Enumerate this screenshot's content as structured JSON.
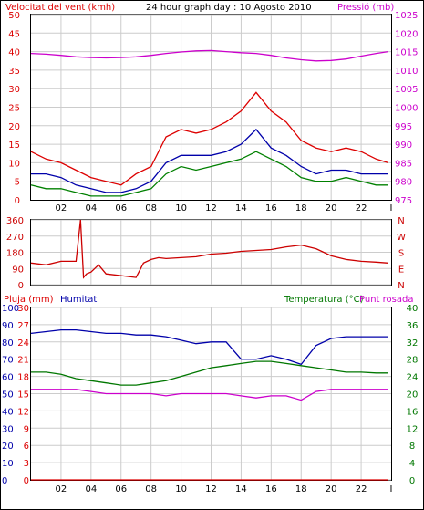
{
  "colors": {
    "wind": "#dd0000",
    "gust_green": "#008000",
    "avg_blue": "#0000aa",
    "pressure": "#cc00cc",
    "direction": "#cc0000",
    "humidity": "#0000aa",
    "temperature": "#007700",
    "dewpoint": "#cc00cc",
    "rain": "#dd0000",
    "grid": "#cccccc"
  },
  "chart_data": [
    {
      "type": "line",
      "title": "24 hour graph day : 10 Agosto 2010",
      "left_axis_label": "Velocitat del vent (kmh)",
      "right_axis_label": "Pressió (mb)",
      "ylim_left": [
        0,
        50
      ],
      "ylim_right": [
        975,
        1025
      ],
      "yticks_left": [
        "0",
        "5",
        "10",
        "15",
        "20",
        "25",
        "30",
        "35",
        "40",
        "45",
        "50"
      ],
      "yticks_right": [
        "975",
        "980",
        "985",
        "990",
        "995",
        "1000",
        "1005",
        "1010",
        "1015",
        "1020",
        "1025"
      ],
      "xticks": [
        "02",
        "04",
        "06",
        "08",
        "10",
        "12",
        "14",
        "16",
        "18",
        "20",
        "22",
        "I"
      ],
      "xlim": [
        0,
        24
      ],
      "grid": true,
      "series": [
        {
          "key": "pressure",
          "axis": "right",
          "x": [
            0,
            1,
            2,
            3,
            4,
            5,
            6,
            7,
            8,
            9,
            10,
            11,
            12,
            13,
            14,
            15,
            16,
            17,
            18,
            19,
            20,
            21,
            22,
            23,
            23.8
          ],
          "values": [
            1014.5,
            1014.3,
            1014.0,
            1013.6,
            1013.4,
            1013.3,
            1013.4,
            1013.6,
            1014.0,
            1014.5,
            1014.9,
            1015.2,
            1015.3,
            1015.0,
            1014.7,
            1014.5,
            1014.0,
            1013.3,
            1012.8,
            1012.5,
            1012.6,
            1013.0,
            1013.8,
            1014.5,
            1015.0
          ]
        },
        {
          "key": "wind",
          "axis": "left",
          "x": [
            0,
            1,
            2,
            3,
            4,
            5,
            6,
            7,
            8,
            9,
            10,
            11,
            12,
            13,
            14,
            15,
            16,
            17,
            18,
            19,
            20,
            21,
            22,
            23,
            23.8
          ],
          "values": [
            13,
            11,
            10,
            8,
            6,
            5,
            4,
            7,
            9,
            17,
            19,
            18,
            19,
            21,
            24,
            29,
            24,
            21,
            16,
            14,
            13,
            14,
            13,
            11,
            10
          ]
        },
        {
          "key": "avg_blue",
          "axis": "left",
          "x": [
            0,
            1,
            2,
            3,
            4,
            5,
            6,
            7,
            8,
            9,
            10,
            11,
            12,
            13,
            14,
            15,
            16,
            17,
            18,
            19,
            20,
            21,
            22,
            23,
            23.8
          ],
          "values": [
            7,
            7,
            6,
            4,
            3,
            2,
            2,
            3,
            5,
            10,
            12,
            12,
            12,
            13,
            15,
            19,
            14,
            12,
            9,
            7,
            8,
            8,
            7,
            7,
            7
          ]
        },
        {
          "key": "gust_green",
          "axis": "left",
          "x": [
            0,
            1,
            2,
            3,
            4,
            5,
            6,
            7,
            8,
            9,
            10,
            11,
            12,
            13,
            14,
            15,
            16,
            17,
            18,
            19,
            20,
            21,
            22,
            23,
            23.8
          ],
          "values": [
            4,
            3,
            3,
            2,
            1,
            1,
            1,
            2,
            3,
            7,
            9,
            8,
            9,
            10,
            11,
            13,
            11,
            9,
            6,
            5,
            5,
            6,
            5,
            4,
            4
          ]
        }
      ]
    },
    {
      "type": "line",
      "ylim": [
        0,
        360
      ],
      "yticks": [
        "0",
        "90",
        "180",
        "270",
        "360"
      ],
      "direction_labels": [
        "N",
        "W",
        "S",
        "E",
        "N"
      ],
      "xlim": [
        0,
        24
      ],
      "grid": true,
      "series": [
        {
          "key": "direction",
          "x": [
            0,
            1,
            2,
            3,
            3.3,
            3.5,
            3.7,
            4,
            4.5,
            5,
            6,
            7,
            7.5,
            8,
            8.5,
            9,
            10,
            11,
            12,
            13,
            14,
            15,
            16,
            17,
            18,
            19,
            20,
            21,
            22,
            23,
            23.8
          ],
          "values": [
            120,
            110,
            130,
            130,
            360,
            40,
            60,
            70,
            110,
            60,
            50,
            40,
            120,
            140,
            150,
            145,
            150,
            155,
            170,
            175,
            185,
            190,
            195,
            210,
            220,
            200,
            160,
            140,
            130,
            125,
            120
          ]
        }
      ]
    },
    {
      "type": "line",
      "left_axis_label": "Pluja (mm)",
      "left_axis_label2": "Humitat",
      "right_axis_label": "Temperatura (°C)",
      "right_axis_label2": "Punt rosada",
      "ylim_left_rain": [
        0,
        30
      ],
      "ylim_left_hum": [
        0,
        100
      ],
      "ylim_right": [
        0,
        40
      ],
      "yticks_rain": [
        "0",
        "3",
        "6",
        "9",
        "12",
        "15",
        "18",
        "21",
        "24",
        "27",
        "30"
      ],
      "yticks_hum": [
        "0",
        "10",
        "20",
        "30",
        "40",
        "50",
        "60",
        "70",
        "80",
        "90",
        "100"
      ],
      "yticks_right": [
        "0",
        "4",
        "8",
        "12",
        "16",
        "20",
        "24",
        "28",
        "32",
        "36",
        "40"
      ],
      "xticks": [
        "02",
        "04",
        "06",
        "08",
        "10",
        "12",
        "14",
        "16",
        "18",
        "20",
        "22",
        "I"
      ],
      "xlim": [
        0,
        24
      ],
      "grid": true,
      "series": [
        {
          "key": "humidity",
          "axis": "hum",
          "x": [
            0,
            1,
            2,
            3,
            4,
            5,
            6,
            7,
            8,
            9,
            10,
            11,
            12,
            13,
            14,
            15,
            16,
            17,
            18,
            19,
            20,
            21,
            22,
            23,
            23.8
          ],
          "values": [
            85,
            86,
            87,
            87,
            86,
            85,
            85,
            84,
            84,
            83,
            81,
            79,
            80,
            80,
            70,
            70,
            72,
            70,
            67,
            78,
            82,
            83,
            83,
            83,
            83
          ]
        },
        {
          "key": "temperature",
          "axis": "right",
          "x": [
            0,
            1,
            2,
            3,
            4,
            5,
            6,
            7,
            8,
            9,
            10,
            11,
            12,
            13,
            14,
            15,
            16,
            17,
            18,
            19,
            20,
            21,
            22,
            23,
            23.8
          ],
          "values": [
            25,
            25,
            24.5,
            23.5,
            23,
            22.5,
            22,
            22,
            22.5,
            23,
            24,
            25,
            26,
            26.5,
            27,
            27.5,
            27.5,
            27,
            26.5,
            26,
            25.5,
            25,
            25,
            24.8,
            24.8
          ]
        },
        {
          "key": "dewpoint",
          "axis": "right",
          "x": [
            0,
            1,
            2,
            3,
            4,
            5,
            6,
            7,
            8,
            9,
            10,
            11,
            12,
            13,
            14,
            15,
            16,
            17,
            18,
            19,
            20,
            21,
            22,
            23,
            23.8
          ],
          "values": [
            21,
            21,
            21,
            21,
            20.5,
            20,
            20,
            20,
            20,
            19.5,
            20,
            20,
            20,
            20,
            19.5,
            19,
            19.5,
            19.5,
            18.5,
            20.5,
            21,
            21,
            21,
            21,
            21
          ]
        },
        {
          "key": "rain",
          "axis": "rain",
          "x": [
            0,
            23.8
          ],
          "values": [
            0,
            0
          ]
        }
      ]
    }
  ]
}
